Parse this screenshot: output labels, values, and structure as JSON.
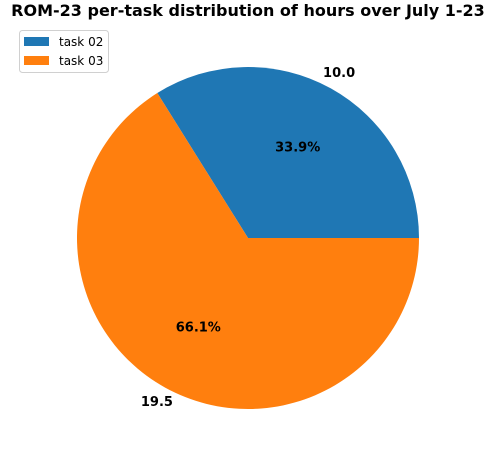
{
  "chart_data": {
    "type": "pie",
    "title": "ROM-23 per-task distribution of hours over July 1-23",
    "categories": [
      "task 02",
      "task 03"
    ],
    "values": [
      10.0,
      19.5
    ],
    "value_labels": [
      "10.0",
      "19.5"
    ],
    "percent_labels": [
      "33.9%",
      "66.1%"
    ],
    "colors": [
      "#1f77b4",
      "#ff7f0e"
    ],
    "legend": {
      "position": "top-left",
      "entries": [
        "task 02",
        "task 03"
      ]
    }
  }
}
